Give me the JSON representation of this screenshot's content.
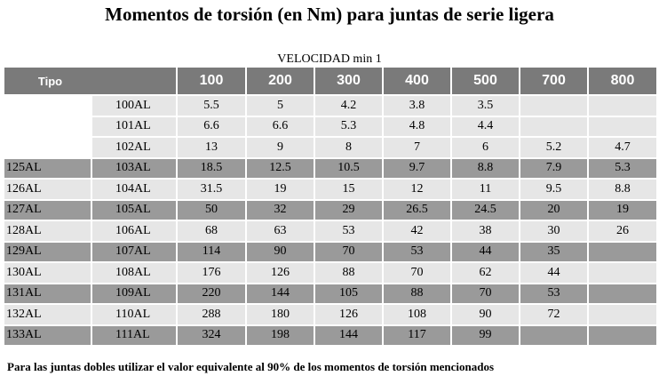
{
  "title": "Momentos de torsión (en Nm) para juntas de serie ligera",
  "velocity_label": "VELOCIDAD min 1",
  "headers": [
    "Tipo",
    "100",
    "200",
    "300",
    "400",
    "500",
    "700",
    "800"
  ],
  "rows": [
    {
      "tipo_a": "",
      "tipo_b": "100AL",
      "values": [
        "5.5",
        "5",
        "4.2",
        "3.8",
        "3.5",
        "",
        ""
      ],
      "shade": "light"
    },
    {
      "tipo_a": "",
      "tipo_b": "101AL",
      "values": [
        "6.6",
        "6.6",
        "5.3",
        "4.8",
        "4.4",
        "",
        ""
      ],
      "shade": "light"
    },
    {
      "tipo_a": "",
      "tipo_b": "102AL",
      "values": [
        "13",
        "9",
        "8",
        "7",
        "6",
        "5.2",
        "4.7"
      ],
      "shade": "light"
    },
    {
      "tipo_a": "125AL",
      "tipo_b": "103AL",
      "values": [
        "18.5",
        "12.5",
        "10.5",
        "9.7",
        "8.8",
        "7.9",
        "5.3"
      ],
      "shade": "dark"
    },
    {
      "tipo_a": "126AL",
      "tipo_b": "104AL",
      "values": [
        "31.5",
        "19",
        "15",
        "12",
        "11",
        "9.5",
        "8.8"
      ],
      "shade": "light"
    },
    {
      "tipo_a": "127AL",
      "tipo_b": "105AL",
      "values": [
        "50",
        "32",
        "29",
        "26.5",
        "24.5",
        "20",
        "19"
      ],
      "shade": "dark"
    },
    {
      "tipo_a": "128AL",
      "tipo_b": "106AL",
      "values": [
        "68",
        "63",
        "53",
        "42",
        "38",
        "30",
        "26"
      ],
      "shade": "light"
    },
    {
      "tipo_a": "129AL",
      "tipo_b": "107AL",
      "values": [
        "114",
        "90",
        "70",
        "53",
        "44",
        "35",
        ""
      ],
      "shade": "dark"
    },
    {
      "tipo_a": "130AL",
      "tipo_b": "108AL",
      "values": [
        "176",
        "126",
        "88",
        "70",
        "62",
        "44",
        ""
      ],
      "shade": "light"
    },
    {
      "tipo_a": "131AL",
      "tipo_b": "109AL",
      "values": [
        "220",
        "144",
        "105",
        "88",
        "70",
        "53",
        ""
      ],
      "shade": "dark"
    },
    {
      "tipo_a": "132AL",
      "tipo_b": "110AL",
      "values": [
        "288",
        "180",
        "126",
        "108",
        "90",
        "72",
        ""
      ],
      "shade": "light"
    },
    {
      "tipo_a": "133AL",
      "tipo_b": "111AL",
      "values": [
        "324",
        "198",
        "144",
        "117",
        "99",
        "",
        ""
      ],
      "shade": "dark"
    }
  ],
  "footer": "Para las juntas dobles utilizar el valor equivalente al 90% de los momentos de torsión mencionados"
}
